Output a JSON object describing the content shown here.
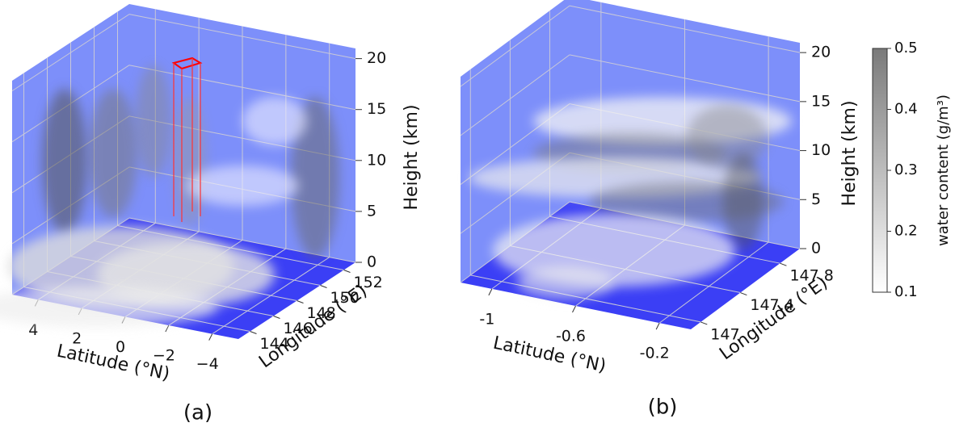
{
  "chart_data": [
    {
      "type": "volume3d",
      "panel_label": "(a)",
      "xlabel": "Latitude (°N)",
      "ylabel": "Longitude (°E)",
      "zlabel": "Height (km)",
      "xlim": [
        5.2,
        -5.2
      ],
      "ylim": [
        143,
        153
      ],
      "zlim": [
        0,
        21
      ],
      "xticks": [
        4,
        2,
        0,
        {
          "value": -2,
          "label": "−2"
        },
        {
          "value": -4,
          "label": "−4"
        }
      ],
      "yticks": [
        144,
        146,
        148,
        150,
        152
      ],
      "zticks": [
        0,
        5,
        10,
        15,
        20
      ],
      "pane_color": "#7d8ffa",
      "floor_color": "#3b3ff5",
      "grid": true
    },
    {
      "type": "volume3d",
      "panel_label": "(b)",
      "xlabel": "Latitude (°N)",
      "ylabel": "Longitude (°E)",
      "zlabel": "Height (km)",
      "xlim": [
        -1.15,
        -0.05
      ],
      "ylim": [
        146.9,
        148.0
      ],
      "zlim": [
        0,
        21
      ],
      "xticks": [
        -1,
        -0.6,
        -0.2
      ],
      "yticks": [
        147,
        147.4,
        147.8
      ],
      "zticks": [
        0,
        5,
        10,
        15,
        20
      ],
      "pane_color": "#7d8ffa",
      "floor_color": "#3b3ff5",
      "grid": true,
      "colorbar": {
        "label": "water content (g/m³)",
        "lim": [
          0.1,
          0.5
        ],
        "ticks": [
          0.1,
          0.2,
          0.3,
          0.4,
          0.5
        ],
        "colors": [
          "#ffffff",
          "#7a7a7a"
        ]
      }
    }
  ]
}
